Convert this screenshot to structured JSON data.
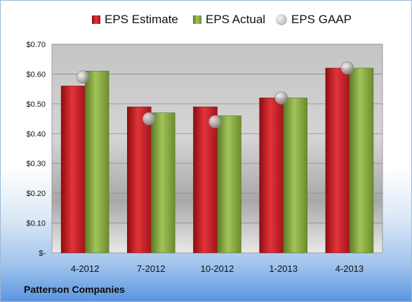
{
  "company": "Patterson Companies",
  "legend": {
    "estimate": "EPS Estimate",
    "actual": "EPS Actual",
    "gaap": "EPS GAAP"
  },
  "colors": {
    "estimate": "#c2151b",
    "actual": "#7fa13a",
    "gaap": "#b7b7b7",
    "plot_bg_top": "#c9c9c9",
    "plot_bg_bottom": "#f5f5f5"
  },
  "chart_data": {
    "type": "bar",
    "categories": [
      "4-2012",
      "7-2012",
      "10-2012",
      "1-2013",
      "4-2013"
    ],
    "series": [
      {
        "name": "EPS Estimate",
        "values": [
          0.56,
          0.49,
          0.49,
          0.52,
          0.62
        ]
      },
      {
        "name": "EPS Actual",
        "values": [
          0.61,
          0.47,
          0.46,
          0.52,
          0.62
        ]
      },
      {
        "name": "EPS GAAP",
        "type": "scatter",
        "values": [
          0.59,
          0.45,
          0.44,
          0.52,
          0.62
        ]
      }
    ],
    "yticks": [
      "$-",
      "$0.10",
      "$0.20",
      "$0.30",
      "$0.40",
      "$0.50",
      "$0.60",
      "$0.70"
    ],
    "ylim": [
      0,
      0.7
    ],
    "grid": true,
    "legend_position": "top"
  }
}
